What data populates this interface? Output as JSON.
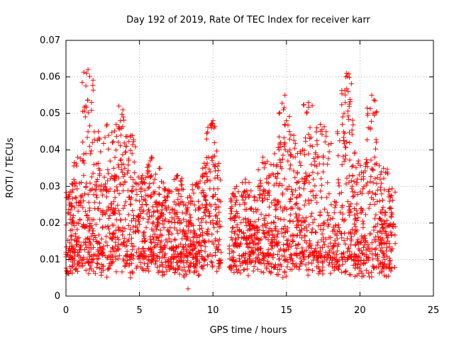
{
  "chart_data": {
    "type": "scatter",
    "title": "Day 192 of 2019, Rate Of TEC Index for receiver karr",
    "xlabel": "GPS time / hours",
    "ylabel": "ROTI / TECUs",
    "xlim": [
      0,
      25
    ],
    "ylim": [
      0,
      0.07
    ],
    "xticks": [
      0,
      5,
      10,
      15,
      20,
      25
    ],
    "xtick_labels": [
      "0",
      "5",
      "10",
      "15",
      "20",
      "25"
    ],
    "yticks": [
      0,
      0.01,
      0.02,
      0.03,
      0.04,
      0.05,
      0.06,
      0.07
    ],
    "ytick_labels": [
      "0",
      "0.01",
      "0.02",
      "0.03",
      "0.04",
      "0.05",
      "0.06",
      "0.07"
    ],
    "grid": true,
    "marker": "+",
    "marker_color": "#ff0000",
    "data_gap_hours": [
      10.6,
      11.1
    ],
    "data_end_hour": 22.4,
    "series": [
      {
        "name": "ROTI",
        "points": [
          [
            0.0,
            0.012
          ],
          [
            0.1,
            0.027
          ],
          [
            0.2,
            0.01
          ],
          [
            0.3,
            0.018
          ],
          [
            0.4,
            0.008
          ],
          [
            0.5,
            0.022
          ],
          [
            0.6,
            0.031
          ],
          [
            0.7,
            0.014
          ],
          [
            0.8,
            0.038
          ],
          [
            0.9,
            0.011
          ],
          [
            1.0,
            0.026
          ],
          [
            1.1,
            0.019
          ],
          [
            1.2,
            0.033
          ],
          [
            1.3,
            0.009
          ],
          [
            1.4,
            0.061
          ],
          [
            1.5,
            0.062
          ],
          [
            1.5,
            0.045
          ],
          [
            1.6,
            0.041
          ],
          [
            1.7,
            0.029
          ],
          [
            1.8,
            0.042
          ],
          [
            1.9,
            0.036
          ],
          [
            2.0,
            0.016
          ],
          [
            2.1,
            0.027
          ],
          [
            2.2,
            0.045
          ],
          [
            2.3,
            0.021
          ],
          [
            2.5,
            0.012
          ],
          [
            2.6,
            0.03
          ],
          [
            2.7,
            0.019
          ],
          [
            2.8,
            0.047
          ],
          [
            2.9,
            0.044
          ],
          [
            3.0,
            0.037
          ],
          [
            3.1,
            0.025
          ],
          [
            3.2,
            0.013
          ],
          [
            3.3,
            0.032
          ],
          [
            3.4,
            0.018
          ],
          [
            3.5,
            0.029
          ],
          [
            3.6,
            0.052
          ],
          [
            3.7,
            0.048
          ],
          [
            3.8,
            0.036
          ],
          [
            3.9,
            0.024
          ],
          [
            4.0,
            0.035
          ],
          [
            4.1,
            0.041
          ],
          [
            4.2,
            0.015
          ],
          [
            4.3,
            0.027
          ],
          [
            4.4,
            0.044
          ],
          [
            4.5,
            0.039
          ],
          [
            4.6,
            0.022
          ],
          [
            4.7,
            0.031
          ],
          [
            4.8,
            0.012
          ],
          [
            4.9,
            0.018
          ],
          [
            5.0,
            0.026
          ],
          [
            5.2,
            0.033
          ],
          [
            5.4,
            0.015
          ],
          [
            5.6,
            0.021
          ],
          [
            5.8,
            0.038
          ],
          [
            6.0,
            0.028
          ],
          [
            6.2,
            0.019
          ],
          [
            6.4,
            0.035
          ],
          [
            6.6,
            0.013
          ],
          [
            6.8,
            0.024
          ],
          [
            7.0,
            0.029
          ],
          [
            7.2,
            0.017
          ],
          [
            7.4,
            0.023
          ],
          [
            7.6,
            0.033
          ],
          [
            7.8,
            0.011
          ],
          [
            8.0,
            0.021
          ],
          [
            8.2,
            0.006
          ],
          [
            8.3,
            0.002
          ],
          [
            8.5,
            0.026
          ],
          [
            8.7,
            0.018
          ],
          [
            8.9,
            0.031
          ],
          [
            9.1,
            0.012
          ],
          [
            9.3,
            0.035
          ],
          [
            9.5,
            0.022
          ],
          [
            9.7,
            0.038
          ],
          [
            9.9,
            0.046
          ],
          [
            10.0,
            0.048
          ],
          [
            10.1,
            0.042
          ],
          [
            10.2,
            0.02
          ],
          [
            10.3,
            0.033
          ],
          [
            10.4,
            0.014
          ],
          [
            10.5,
            0.009
          ],
          [
            11.2,
            0.024
          ],
          [
            11.4,
            0.012
          ],
          [
            11.6,
            0.03
          ],
          [
            11.8,
            0.018
          ],
          [
            12.0,
            0.009
          ],
          [
            12.2,
            0.032
          ],
          [
            12.4,
            0.021
          ],
          [
            12.6,
            0.016
          ],
          [
            12.8,
            0.027
          ],
          [
            13.0,
            0.013
          ],
          [
            13.2,
            0.029
          ],
          [
            13.4,
            0.038
          ],
          [
            13.6,
            0.022
          ],
          [
            13.8,
            0.033
          ],
          [
            14.0,
            0.018
          ],
          [
            14.2,
            0.039
          ],
          [
            14.4,
            0.026
          ],
          [
            14.6,
            0.042
          ],
          [
            14.8,
            0.051
          ],
          [
            14.9,
            0.055
          ],
          [
            15.0,
            0.048
          ],
          [
            15.1,
            0.037
          ],
          [
            15.3,
            0.024
          ],
          [
            15.5,
            0.044
          ],
          [
            15.7,
            0.031
          ],
          [
            15.9,
            0.018
          ],
          [
            16.1,
            0.04
          ],
          [
            16.3,
            0.026
          ],
          [
            16.5,
            0.053
          ],
          [
            16.7,
            0.036
          ],
          [
            16.9,
            0.021
          ],
          [
            17.1,
            0.038
          ],
          [
            17.3,
            0.047
          ],
          [
            17.5,
            0.034
          ],
          [
            17.7,
            0.045
          ],
          [
            17.9,
            0.028
          ],
          [
            18.0,
            0.016
          ],
          [
            18.2,
            0.012
          ],
          [
            18.4,
            0.008
          ],
          [
            18.6,
            0.028
          ],
          [
            18.8,
            0.047
          ],
          [
            19.0,
            0.053
          ],
          [
            19.1,
            0.061
          ],
          [
            19.2,
            0.056
          ],
          [
            19.3,
            0.042
          ],
          [
            19.5,
            0.033
          ],
          [
            19.7,
            0.019
          ],
          [
            19.9,
            0.037
          ],
          [
            20.1,
            0.024
          ],
          [
            20.3,
            0.014
          ],
          [
            20.5,
            0.031
          ],
          [
            20.7,
            0.046
          ],
          [
            20.8,
            0.055
          ],
          [
            20.9,
            0.05
          ],
          [
            21.0,
            0.038
          ],
          [
            21.2,
            0.029
          ],
          [
            21.4,
            0.021
          ],
          [
            21.6,
            0.035
          ],
          [
            21.8,
            0.017
          ],
          [
            22.0,
            0.024
          ],
          [
            22.2,
            0.013
          ],
          [
            22.4,
            0.019
          ]
        ]
      }
    ]
  }
}
